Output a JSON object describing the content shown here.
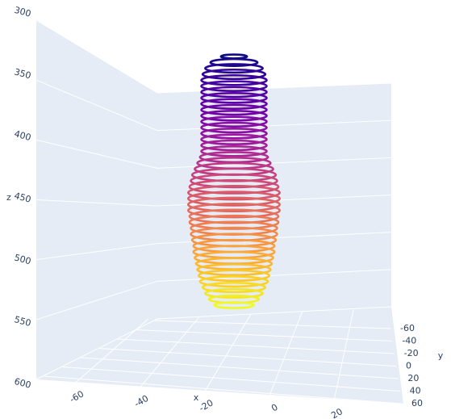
{
  "chart_data": {
    "type": "scatter3d",
    "x_label": "x",
    "y_label": "y",
    "z_label": "z",
    "xlim": [
      -80,
      30
    ],
    "xticks": [
      -60,
      -40,
      -20,
      0,
      20
    ],
    "ylim": [
      -60,
      60
    ],
    "yticks": [
      -60,
      -40,
      -20,
      0,
      20,
      40,
      60
    ],
    "zlim": [
      300,
      600
    ],
    "zticks": [
      300,
      350,
      400,
      450,
      500,
      550,
      600
    ],
    "z_reversed": true,
    "z": [
      335,
      340,
      345,
      350,
      355,
      360,
      365,
      370,
      375,
      380,
      385,
      390,
      395,
      400,
      405,
      410,
      415,
      420,
      425,
      430,
      435,
      440,
      445,
      450,
      455,
      460,
      465,
      470,
      475,
      480,
      485,
      490,
      495,
      500,
      505,
      510,
      515,
      520,
      525,
      530,
      535,
      540,
      545
    ],
    "radius": [
      10,
      18,
      22,
      24,
      25,
      25,
      25,
      25,
      25,
      25,
      25,
      25,
      25,
      25,
      25,
      25,
      25,
      26,
      28,
      30,
      32,
      33,
      34,
      35,
      35,
      35,
      35,
      34,
      34,
      33,
      33,
      32,
      31,
      31,
      30,
      29,
      28,
      27,
      26,
      24,
      22,
      19,
      15
    ],
    "colorscale": [
      "#0d0887",
      "#46039f",
      "#7201a8",
      "#9c179e",
      "#bd3786",
      "#d8576b",
      "#ed7953",
      "#fb9f3a",
      "#fdca26",
      "#f0f921"
    ]
  }
}
